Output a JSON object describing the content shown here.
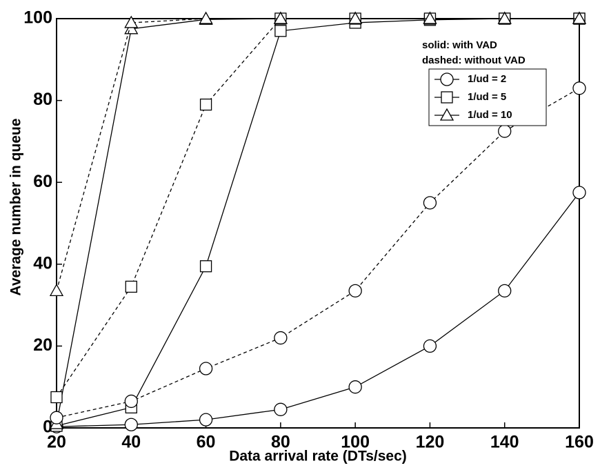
{
  "chart_data": {
    "type": "line",
    "x_label": "Data arrival rate (DTs/sec)",
    "y_label": "Average number in queue",
    "annotations": [
      "solid: with VAD",
      "dashed: without VAD"
    ],
    "x": [
      20,
      40,
      60,
      80,
      100,
      120,
      140,
      160
    ],
    "xlim": [
      20,
      160
    ],
    "xticks": [
      20,
      40,
      60,
      80,
      100,
      120,
      140,
      160
    ],
    "ylim": [
      0,
      100
    ],
    "yticks": [
      0,
      20,
      40,
      60,
      80,
      100
    ],
    "grid": false,
    "legend": "upper right",
    "series": [
      {
        "name": "1/ud = 2",
        "color": "#000000",
        "marker": "circle",
        "dashed": false,
        "values": [
          0.3,
          0.8,
          2,
          4.5,
          10,
          20,
          33.5,
          57.5
        ]
      },
      {
        "name": "1/ud = 5",
        "color": "#000000",
        "marker": "square",
        "dashed": false,
        "values": [
          0.5,
          5,
          39.5,
          97,
          99,
          99.7,
          100,
          100
        ]
      },
      {
        "name": "1/ud = 10",
        "color": "#000000",
        "marker": "triangle",
        "dashed": false,
        "values": [
          1,
          97.5,
          99.8,
          100,
          100,
          100,
          100,
          100
        ]
      },
      {
        "name": "1/ud = 2",
        "color": "#000000",
        "marker": "circle",
        "dashed": true,
        "values": [
          2.5,
          6.5,
          14.5,
          22,
          33.5,
          55,
          72.5,
          83
        ]
      },
      {
        "name": "1/ud = 5",
        "color": "#000000",
        "marker": "square",
        "dashed": true,
        "values": [
          7.5,
          34.5,
          79,
          100,
          100,
          100,
          100,
          100
        ]
      },
      {
        "name": "1/ud = 10",
        "color": "#000000",
        "marker": "triangle",
        "dashed": true,
        "values": [
          33.5,
          99,
          100,
          100,
          100,
          100,
          100,
          100
        ]
      }
    ]
  }
}
